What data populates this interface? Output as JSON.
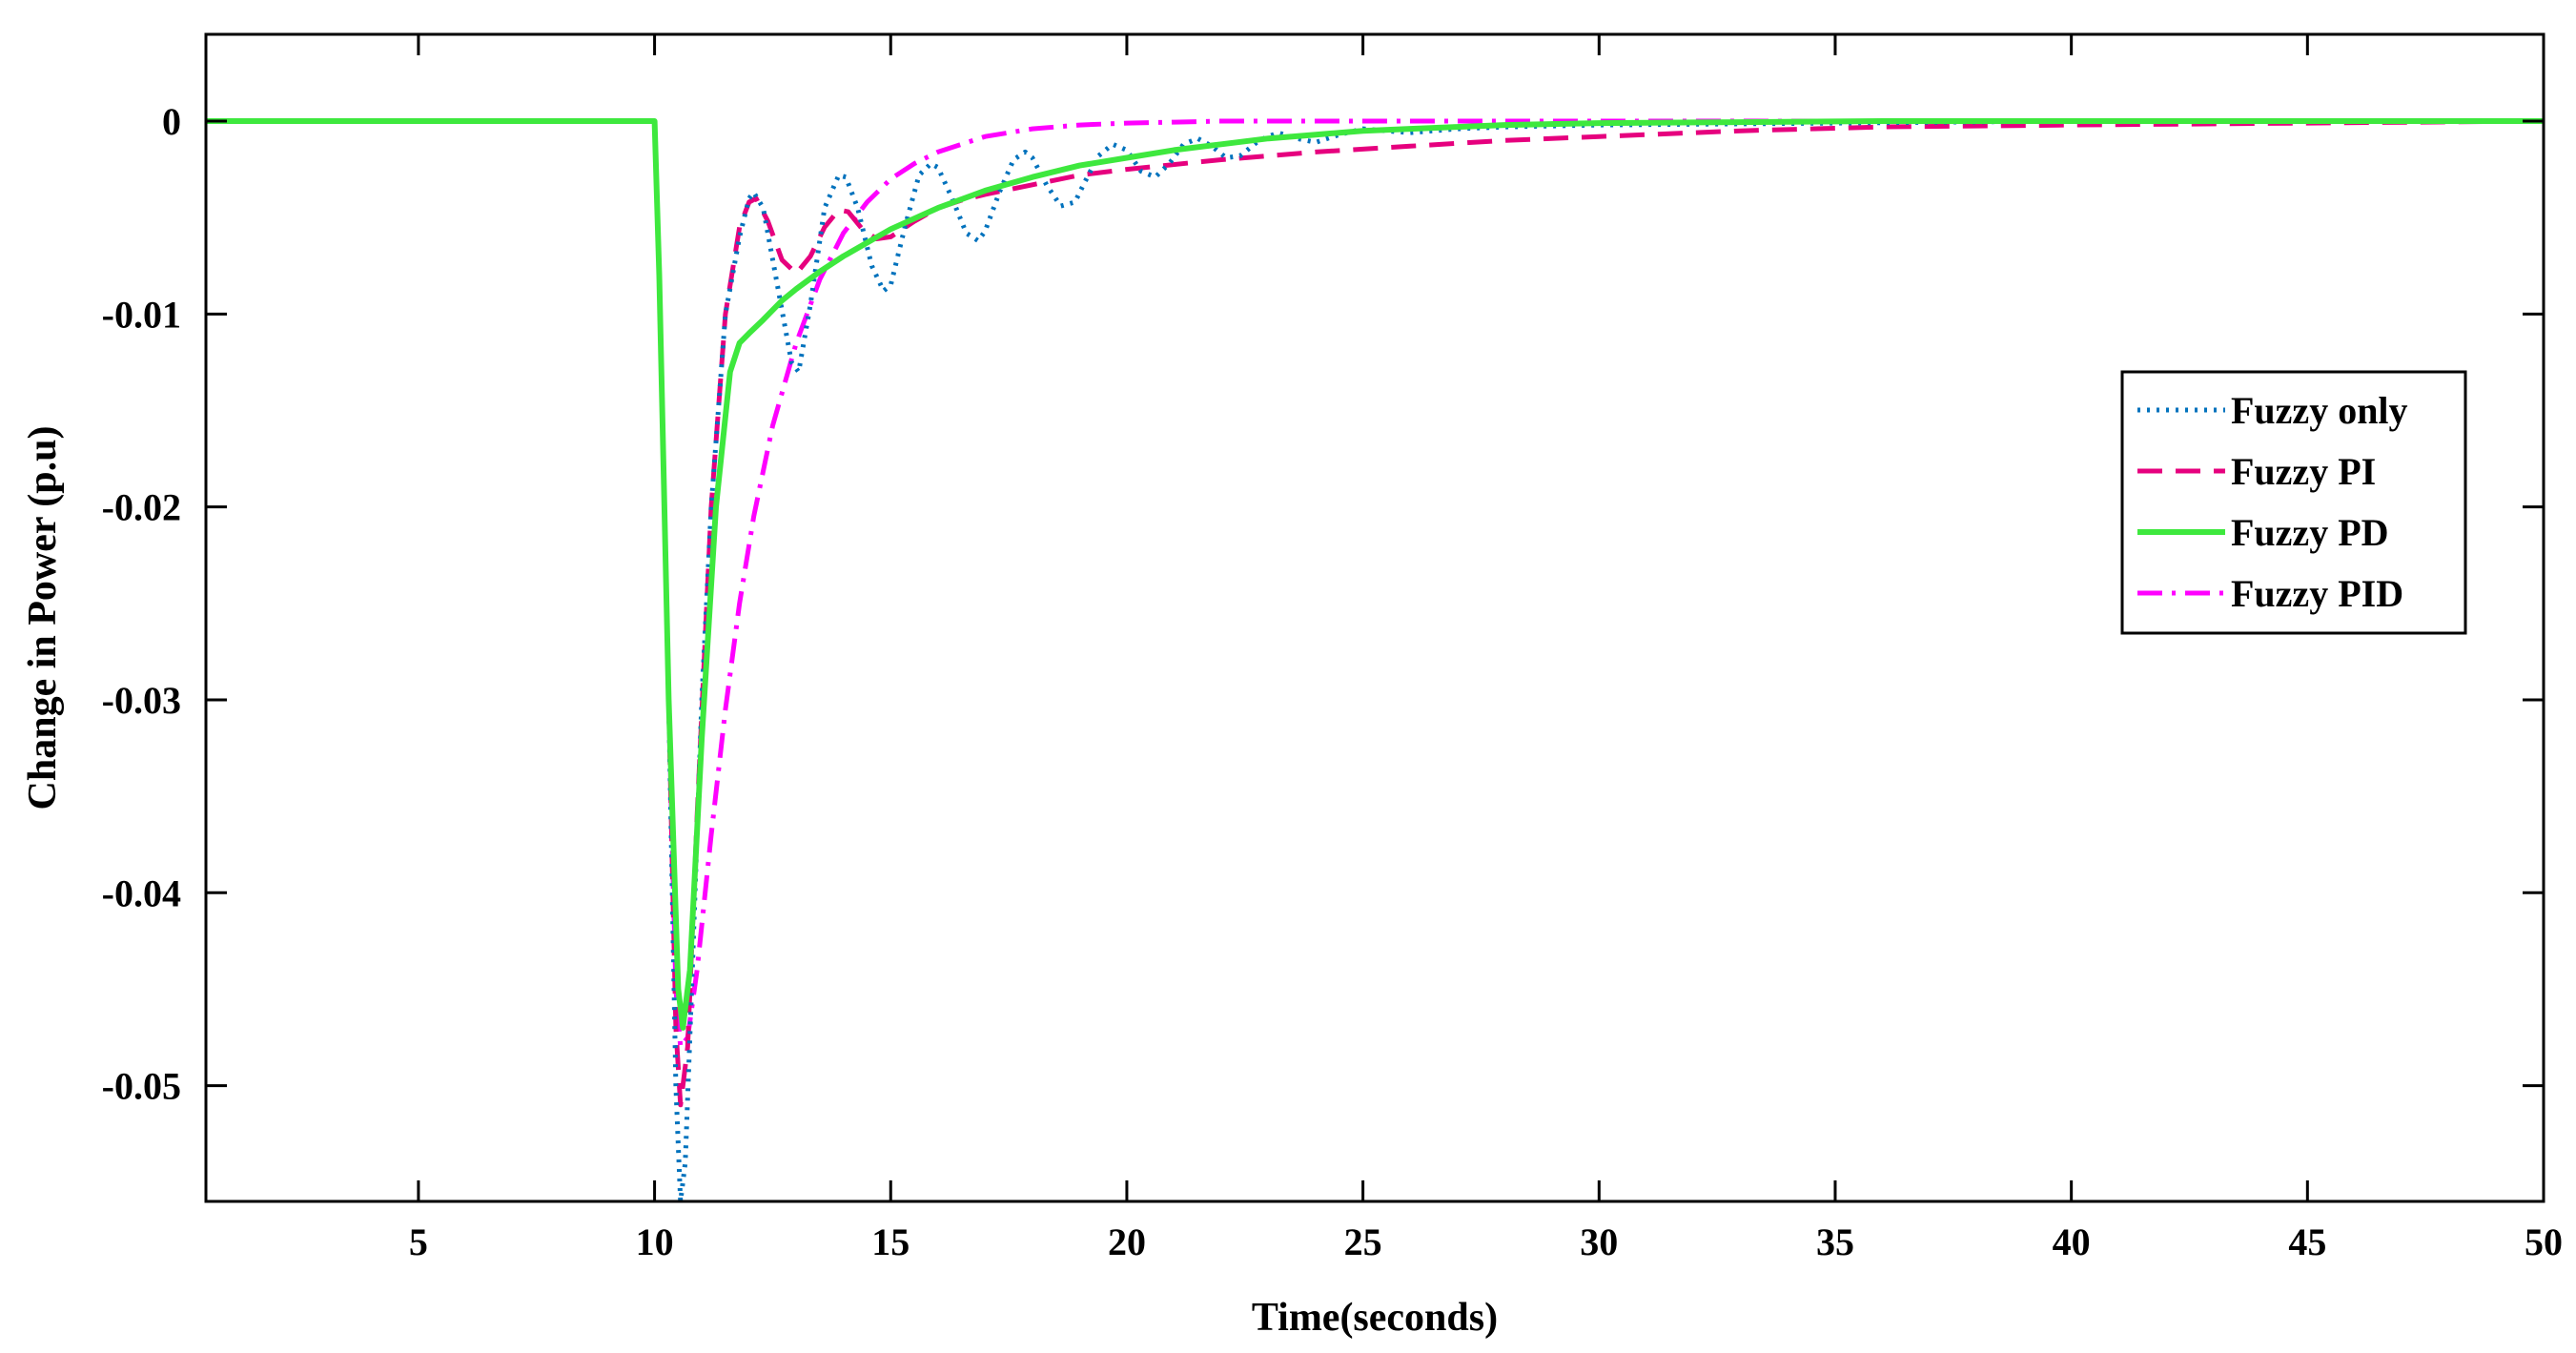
{
  "chart_data": {
    "type": "line",
    "title": "",
    "xlabel": "Time(seconds)",
    "ylabel": "Change in Power (p.u)",
    "xlim": [
      0.5,
      50
    ],
    "ylim": [
      -0.056,
      0.0045
    ],
    "xticks": [
      5,
      10,
      15,
      20,
      25,
      30,
      35,
      40,
      45,
      50
    ],
    "xtick_labels": [
      "5",
      "10",
      "15",
      "20",
      "25",
      "30",
      "35",
      "40",
      "45",
      "50"
    ],
    "yticks": [
      0,
      -0.01,
      -0.02,
      -0.03,
      -0.04,
      -0.05
    ],
    "ytick_labels": [
      "0",
      "-0.01",
      "-0.02",
      "-0.03",
      "-0.04",
      "-0.05"
    ],
    "grid": false,
    "legend_position": "right",
    "series": [
      {
        "name": "Fuzzy only",
        "color": "#0072BD",
        "dash": "dotted",
        "x": [
          0.5,
          10,
          10.1,
          10.3,
          10.45,
          10.55,
          10.65,
          10.8,
          11,
          11.2,
          11.5,
          11.8,
          12,
          12.1,
          12.3,
          12.6,
          12.9,
          13.05,
          13.3,
          13.6,
          13.9,
          14.05,
          14.3,
          14.6,
          14.85,
          15,
          15.3,
          15.6,
          15.85,
          16,
          16.3,
          16.6,
          16.85,
          17,
          17.3,
          17.6,
          17.85,
          18,
          18.3,
          18.6,
          18.9,
          19.1,
          19.4,
          19.7,
          20,
          20.3,
          20.6,
          20.9,
          21.2,
          21.5,
          21.8,
          22.1,
          22.4,
          22.8,
          23.2,
          23.6,
          24,
          24.5,
          25,
          25.5,
          26,
          27,
          28,
          30,
          35,
          40,
          50
        ],
        "y": [
          0,
          0,
          -0.008,
          -0.03,
          -0.05,
          -0.056,
          -0.054,
          -0.044,
          -0.03,
          -0.02,
          -0.01,
          -0.006,
          -0.004,
          -0.0037,
          -0.0045,
          -0.0085,
          -0.0125,
          -0.013,
          -0.0095,
          -0.0045,
          -0.0028,
          -0.0029,
          -0.0045,
          -0.0075,
          -0.0088,
          -0.0085,
          -0.0055,
          -0.0028,
          -0.0022,
          -0.0024,
          -0.004,
          -0.0058,
          -0.0062,
          -0.0057,
          -0.0037,
          -0.002,
          -0.0016,
          -0.0019,
          -0.0033,
          -0.0044,
          -0.0042,
          -0.0032,
          -0.0018,
          -0.0012,
          -0.0015,
          -0.0026,
          -0.0029,
          -0.0022,
          -0.0012,
          -0.0009,
          -0.0013,
          -0.0019,
          -0.0018,
          -0.001,
          -0.0006,
          -0.0009,
          -0.0011,
          -0.0007,
          -0.0004,
          -0.0005,
          -0.0006,
          -0.0004,
          -0.0003,
          -0.0002,
          -0.0001,
          0,
          0
        ]
      },
      {
        "name": "Fuzzy PI",
        "color": "#E6007E",
        "dash": "dashed",
        "x": [
          0.5,
          10,
          10.1,
          10.3,
          10.45,
          10.55,
          10.7,
          10.9,
          11.2,
          11.5,
          11.8,
          12,
          12.15,
          12.4,
          12.7,
          13,
          13.3,
          13.6,
          13.9,
          14.1,
          14.4,
          14.7,
          15,
          15.5,
          16,
          16.5,
          17,
          18,
          19,
          20,
          22,
          24,
          26,
          28,
          30,
          33,
          36,
          40,
          45,
          50
        ],
        "y": [
          0,
          0,
          -0.008,
          -0.03,
          -0.047,
          -0.051,
          -0.048,
          -0.036,
          -0.02,
          -0.01,
          -0.0055,
          -0.0042,
          -0.004,
          -0.0052,
          -0.0072,
          -0.0079,
          -0.007,
          -0.0055,
          -0.0046,
          -0.0047,
          -0.0056,
          -0.0061,
          -0.006,
          -0.0052,
          -0.0045,
          -0.0041,
          -0.0038,
          -0.0033,
          -0.0028,
          -0.0025,
          -0.002,
          -0.0016,
          -0.0013,
          -0.001,
          -0.0008,
          -0.0005,
          -0.0003,
          -0.0002,
          -0.0001,
          0
        ]
      },
      {
        "name": "Fuzzy PD",
        "color": "#3EE83E",
        "dash": "solid",
        "x": [
          0.5,
          10,
          10.1,
          10.3,
          10.5,
          10.6,
          10.75,
          11,
          11.3,
          11.6,
          11.8,
          12,
          12.3,
          12.7,
          13,
          13.5,
          14,
          15,
          16,
          17,
          18,
          19,
          20,
          21,
          22,
          23,
          24,
          25,
          26,
          27,
          28,
          30,
          33,
          36,
          40,
          45,
          50
        ],
        "y": [
          0,
          0,
          -0.008,
          -0.03,
          -0.045,
          -0.047,
          -0.044,
          -0.032,
          -0.02,
          -0.013,
          -0.0115,
          -0.011,
          -0.0103,
          -0.0093,
          -0.0087,
          -0.0078,
          -0.007,
          -0.0056,
          -0.0045,
          -0.0036,
          -0.0029,
          -0.0023,
          -0.0019,
          -0.0015,
          -0.0012,
          -0.0009,
          -0.0007,
          -0.0005,
          -0.0004,
          -0.0003,
          -0.0002,
          -0.0001,
          -5e-05,
          0,
          0,
          0,
          0
        ]
      },
      {
        "name": "Fuzzy PID",
        "color": "#FF00FF",
        "dash": "dashdot",
        "x": [
          0.5,
          10,
          10.1,
          10.3,
          10.45,
          10.55,
          10.7,
          10.9,
          11.2,
          11.5,
          11.8,
          12.1,
          12.5,
          13,
          13.5,
          14,
          14.5,
          15,
          15.5,
          16,
          17,
          18,
          19,
          20,
          21,
          22,
          23,
          25,
          28,
          30,
          35,
          40,
          50
        ],
        "y": [
          0,
          0,
          -0.008,
          -0.03,
          -0.045,
          -0.048,
          -0.0475,
          -0.044,
          -0.037,
          -0.0305,
          -0.025,
          -0.0205,
          -0.0158,
          -0.0115,
          -0.0082,
          -0.0058,
          -0.0042,
          -0.003,
          -0.0022,
          -0.0016,
          -0.0008,
          -0.0004,
          -0.0002,
          -0.0001,
          -5e-05,
          0,
          0,
          0,
          0,
          0,
          0,
          0,
          0
        ]
      }
    ]
  }
}
